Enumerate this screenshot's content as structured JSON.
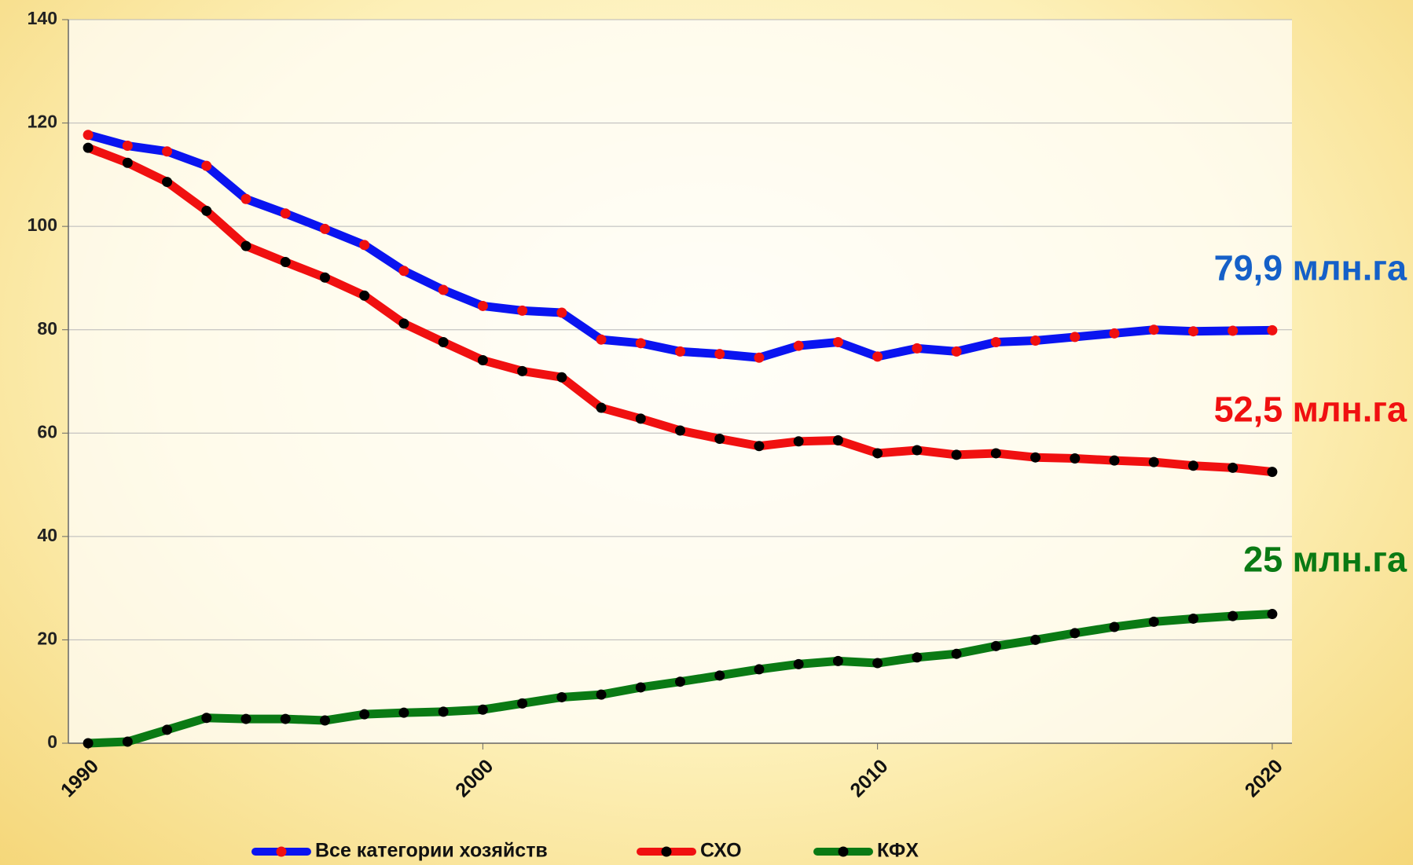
{
  "chart_data": {
    "type": "line",
    "x": [
      1990,
      1991,
      1992,
      1993,
      1994,
      1995,
      1996,
      1997,
      1998,
      1999,
      2000,
      2001,
      2002,
      2003,
      2004,
      2005,
      2006,
      2007,
      2008,
      2009,
      2010,
      2011,
      2012,
      2013,
      2014,
      2015,
      2016,
      2017,
      2018,
      2019,
      2020
    ],
    "series": [
      {
        "name": "Все категории хозяйств",
        "color": "#0a14f0",
        "marker_color": "#f01010",
        "values": [
          117.7,
          115.6,
          114.5,
          111.7,
          105.3,
          102.5,
          99.5,
          96.4,
          91.4,
          87.7,
          84.6,
          83.7,
          83.3,
          78.1,
          77.4,
          75.8,
          75.3,
          74.6,
          76.9,
          77.6,
          74.8,
          76.4,
          75.8,
          77.6,
          77.9,
          78.6,
          79.3,
          80.0,
          79.7,
          79.8,
          79.9
        ]
      },
      {
        "name": "СХО",
        "color": "#f01010",
        "marker_color": "#000000",
        "values": [
          115.2,
          112.3,
          108.6,
          103.0,
          96.2,
          93.1,
          90.1,
          86.6,
          81.2,
          77.6,
          74.1,
          72.0,
          70.8,
          64.9,
          62.8,
          60.5,
          58.9,
          57.5,
          58.4,
          58.6,
          56.1,
          56.7,
          55.8,
          56.1,
          55.3,
          55.1,
          54.7,
          54.4,
          53.7,
          53.3,
          52.5
        ]
      },
      {
        "name": "КФХ",
        "color": "#0a7a14",
        "marker_color": "#000000",
        "values": [
          0,
          0.3,
          2.6,
          4.9,
          4.7,
          4.7,
          4.4,
          5.6,
          5.9,
          6.1,
          6.5,
          7.7,
          8.9,
          9.4,
          10.8,
          11.9,
          13.1,
          14.3,
          15.3,
          15.9,
          15.5,
          16.6,
          17.3,
          18.8,
          20.0,
          21.3,
          22.5,
          23.5,
          24.1,
          24.6,
          25
        ]
      }
    ],
    "annotations": [
      {
        "text": "79,9 млн.га",
        "color": "#1560c8"
      },
      {
        "text": "52,5 млн.га",
        "color": "#f01010"
      },
      {
        "text": "25 млн.га",
        "color": "#0a7a14"
      }
    ],
    "xlim": [
      1989.5,
      2020.5
    ],
    "xticks": [
      1990,
      2000,
      2010,
      2020
    ],
    "ylim": [
      0,
      140
    ],
    "yticks": [
      0,
      20,
      40,
      60,
      80,
      100,
      120,
      140
    ],
    "grid": true
  }
}
